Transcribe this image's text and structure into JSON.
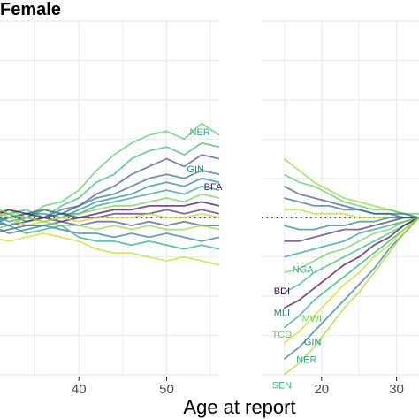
{
  "chart_data": {
    "type": "line",
    "title": "Female",
    "xlabel": "Age at report",
    "ylabel": "",
    "grid": true,
    "reference_line": {
      "y": 0,
      "style": "dotted"
    },
    "y_range": [
      -4,
      5
    ],
    "panels": [
      {
        "name": "left",
        "xlim": [
          31,
          56
        ],
        "ticks": [
          40,
          50
        ],
        "tick_labels": [
          "40",
          "50"
        ],
        "x": [
          30,
          32,
          34,
          36,
          38,
          40,
          42,
          44,
          46,
          48,
          50,
          52,
          54,
          56
        ],
        "series": [
          {
            "values": [
              0.1,
              0.2,
              0.0,
              0.3,
              0.4,
              0.7,
              1.2,
              1.6,
              1.9,
              2.1,
              2.2,
              2.0,
              2.4,
              2.1
            ],
            "color": "#5ec962"
          },
          {
            "values": [
              0.0,
              0.1,
              0.2,
              0.0,
              0.3,
              0.5,
              0.9,
              1.1,
              1.5,
              1.7,
              1.8,
              1.6,
              1.9,
              1.8
            ],
            "color": "#35b779"
          },
          {
            "values": [
              -0.1,
              0.0,
              0.1,
              0.2,
              0.1,
              0.3,
              0.6,
              0.8,
              1.1,
              1.3,
              1.5,
              1.3,
              1.6,
              1.5
            ],
            "color": "#3b528b"
          },
          {
            "values": [
              0.2,
              0.1,
              -0.1,
              0.0,
              0.2,
              0.3,
              0.5,
              0.6,
              0.8,
              1.0,
              1.1,
              1.0,
              1.2,
              1.1
            ],
            "color": "#31688e"
          },
          {
            "values": [
              -0.2,
              0.0,
              0.1,
              0.1,
              0.0,
              0.2,
              0.4,
              0.5,
              0.6,
              0.8,
              0.9,
              0.8,
              1.0,
              0.9
            ],
            "color": "#26828e"
          },
          {
            "values": [
              0.1,
              -0.1,
              0.0,
              0.2,
              0.1,
              0.1,
              0.3,
              0.4,
              0.5,
              0.6,
              0.7,
              0.6,
              0.8,
              0.7
            ],
            "color": "#1f9e89"
          },
          {
            "values": [
              -0.3,
              -0.2,
              0.0,
              -0.1,
              0.0,
              0.1,
              0.2,
              0.3,
              0.3,
              0.4,
              0.5,
              0.4,
              0.6,
              0.5
            ],
            "color": "#6ece58"
          },
          {
            "values": [
              0.0,
              0.2,
              0.1,
              0.0,
              -0.1,
              0.0,
              0.1,
              0.2,
              0.2,
              0.3,
              0.3,
              0.3,
              0.4,
              0.3
            ],
            "color": "#440154"
          },
          {
            "values": [
              -0.1,
              -0.2,
              -0.1,
              0.0,
              0.1,
              0.0,
              0.0,
              0.1,
              0.1,
              0.1,
              0.2,
              0.1,
              0.2,
              0.1
            ],
            "color": "#482878"
          },
          {
            "values": [
              0.2,
              0.0,
              -0.2,
              -0.1,
              0.0,
              -0.1,
              0.0,
              0.0,
              0.0,
              0.1,
              0.0,
              0.0,
              0.1,
              0.0
            ],
            "color": "#b5de2b"
          },
          {
            "values": [
              -0.4,
              -0.3,
              -0.2,
              -0.2,
              -0.1,
              -0.2,
              -0.1,
              -0.1,
              -0.2,
              -0.1,
              -0.2,
              -0.1,
              -0.2,
              -0.2
            ],
            "color": "#3e4a89"
          },
          {
            "values": [
              0.3,
              0.1,
              0.0,
              -0.1,
              -0.2,
              -0.2,
              -0.3,
              -0.2,
              -0.3,
              -0.2,
              -0.3,
              -0.3,
              -0.2,
              -0.3
            ],
            "color": "#90d743"
          },
          {
            "values": [
              -0.2,
              -0.4,
              -0.3,
              -0.2,
              -0.3,
              -0.4,
              -0.4,
              -0.5,
              -0.4,
              -0.5,
              -0.4,
              -0.5,
              -0.6,
              -0.5
            ],
            "color": "#2a788e"
          },
          {
            "values": [
              0.0,
              -0.2,
              -0.4,
              -0.3,
              -0.2,
              -0.5,
              -0.6,
              -0.6,
              -0.7,
              -0.6,
              -0.7,
              -0.8,
              -0.7,
              -0.8
            ],
            "color": "#22a884"
          },
          {
            "values": [
              -0.5,
              -0.6,
              -0.5,
              -0.4,
              -0.5,
              -0.6,
              -0.8,
              -0.9,
              -0.9,
              -1.0,
              -1.1,
              -1.0,
              -1.1,
              -1.2
            ],
            "color": "#c2df23"
          }
        ],
        "annotations": [
          {
            "label": "NER",
            "x": 53.8,
            "y": 2.1,
            "color": "#2aaf90"
          },
          {
            "label": "GIN",
            "x": 53.3,
            "y": 1.15,
            "color": "#1f8a7a"
          },
          {
            "label": "BFA",
            "x": 55.3,
            "y": 0.7,
            "color": "#3e1f6e"
          }
        ]
      },
      {
        "name": "right",
        "xlim": [
          12,
          33
        ],
        "ticks": [
          20,
          30
        ],
        "tick_labels": [
          "20",
          "30"
        ],
        "x": [
          15,
          17,
          19,
          21,
          23,
          25,
          27,
          29,
          31,
          33
        ],
        "series": [
          {
            "values": [
              1.5,
              1.2,
              0.9,
              0.7,
              0.5,
              0.4,
              0.3,
              0.2,
              0.1,
              0.0
            ],
            "color": "#90d743"
          },
          {
            "values": [
              1.1,
              0.9,
              0.8,
              0.6,
              0.4,
              0.3,
              0.2,
              0.2,
              0.1,
              0.1
            ],
            "color": "#5ec962"
          },
          {
            "values": [
              0.8,
              0.6,
              0.5,
              0.4,
              0.3,
              0.2,
              0.1,
              0.1,
              0.0,
              0.0
            ],
            "color": "#3b528b"
          },
          {
            "values": [
              0.5,
              0.4,
              0.3,
              0.3,
              0.2,
              0.2,
              0.1,
              0.1,
              0.1,
              0.0
            ],
            "color": "#31688e"
          },
          {
            "values": [
              0.2,
              0.2,
              0.1,
              0.1,
              0.1,
              0.0,
              0.0,
              0.0,
              0.0,
              0.0
            ],
            "color": "#b5de2b"
          },
          {
            "values": [
              -0.2,
              -0.3,
              -0.3,
              -0.2,
              -0.2,
              -0.1,
              -0.1,
              0.0,
              0.0,
              0.0
            ],
            "color": "#26828e"
          },
          {
            "values": [
              -0.6,
              -0.6,
              -0.5,
              -0.4,
              -0.3,
              -0.3,
              -0.2,
              -0.1,
              0.0,
              0.0
            ],
            "color": "#482878"
          },
          {
            "values": [
              -1.0,
              -0.9,
              -0.8,
              -0.7,
              -0.6,
              -0.4,
              -0.3,
              -0.2,
              -0.1,
              0.0
            ],
            "color": "#1f9e89"
          },
          {
            "values": [
              -1.4,
              -1.3,
              -1.1,
              -0.9,
              -0.8,
              -0.6,
              -0.4,
              -0.3,
              -0.1,
              0.0
            ],
            "color": "#6ece58"
          },
          {
            "values": [
              -1.9,
              -1.7,
              -1.4,
              -1.2,
              -1.0,
              -0.8,
              -0.6,
              -0.4,
              -0.2,
              0.0
            ],
            "color": "#35b779"
          },
          {
            "values": [
              -2.3,
              -2.1,
              -1.8,
              -1.5,
              -1.2,
              -1.0,
              -0.7,
              -0.5,
              -0.2,
              0.0
            ],
            "color": "#440154"
          },
          {
            "values": [
              -2.8,
              -2.5,
              -2.1,
              -1.8,
              -1.5,
              -1.2,
              -0.9,
              -0.6,
              -0.3,
              0.0
            ],
            "color": "#22a884"
          },
          {
            "values": [
              -3.2,
              -2.9,
              -2.5,
              -2.1,
              -1.7,
              -1.4,
              -1.0,
              -0.7,
              -0.3,
              0.0
            ],
            "color": "#c2df23"
          },
          {
            "values": [
              -3.6,
              -3.3,
              -2.9,
              -2.5,
              -2.1,
              -1.7,
              -1.3,
              -0.8,
              -0.4,
              0.0
            ],
            "color": "#2a788e"
          },
          {
            "values": [
              -4.0,
              -3.7,
              -3.3,
              -2.8,
              -2.3,
              -1.9,
              -1.4,
              -0.9,
              -0.4,
              0.0
            ],
            "color": "#a0da39"
          }
        ],
        "annotations": [
          {
            "label": "NGA",
            "x": 17.5,
            "y": -1.4,
            "color": "#2aaf90"
          },
          {
            "label": "BDI",
            "x": 14.7,
            "y": -1.95,
            "color": "#440154"
          },
          {
            "label": "MLI",
            "x": 14.7,
            "y": -2.5,
            "color": "#1f8a7a"
          },
          {
            "label": "MWI",
            "x": 18.7,
            "y": -2.65,
            "color": "#6ece58"
          },
          {
            "label": "TCD",
            "x": 14.7,
            "y": -3.05,
            "color": "#5ec962"
          },
          {
            "label": "GIN",
            "x": 18.8,
            "y": -3.25,
            "color": "#1f8a7a"
          },
          {
            "label": "NER",
            "x": 18.0,
            "y": -3.7,
            "color": "#2aaf90"
          },
          {
            "label": "SEN",
            "x": 14.7,
            "y": -4.35,
            "color": "#35b779"
          }
        ]
      }
    ]
  }
}
